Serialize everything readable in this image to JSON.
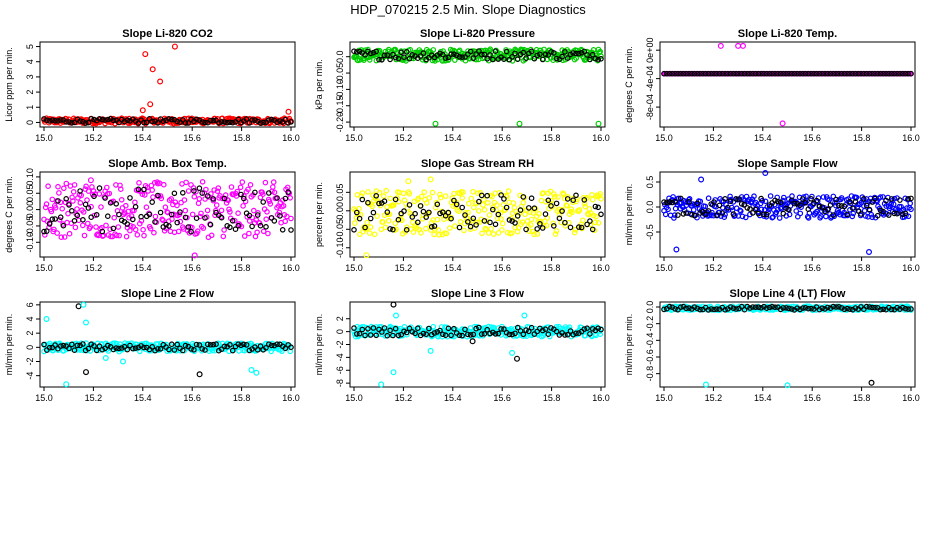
{
  "figure": {
    "title": "HDP_070215  2.5 Min. Slope Diagnostics"
  },
  "chart_data": [
    {
      "type": "scatter",
      "title": "Slope Li-820 CO2",
      "xlabel": "",
      "ylabel": "Licor ppm per min.",
      "color": "#ff0000",
      "xlim": [
        15.0,
        16.0
      ],
      "xticks": [
        "15.0",
        "15.2",
        "15.4",
        "15.6",
        "15.8",
        "16.0"
      ],
      "ylim": [
        -0.3,
        5.3
      ],
      "yticks": [
        {
          "v": 0,
          "l": "0"
        },
        {
          "v": 1,
          "l": "1"
        },
        {
          "v": 2,
          "l": "2"
        },
        {
          "v": 3,
          "l": "3"
        },
        {
          "v": 4,
          "l": "4"
        },
        {
          "v": 5,
          "l": "5"
        }
      ],
      "band": {
        "center": 0.1,
        "half": 0.18
      },
      "outliers": [
        [
          15.41,
          4.5
        ],
        [
          15.44,
          3.5
        ],
        [
          15.47,
          2.7
        ],
        [
          15.53,
          5.0
        ],
        [
          15.43,
          1.2
        ],
        [
          15.4,
          0.8
        ],
        [
          15.99,
          0.7
        ]
      ]
    },
    {
      "type": "scatter",
      "title": "Slope Li-820 Pressure",
      "xlabel": "",
      "ylabel": "kPa per min.",
      "color": "#00cc00",
      "xlim": [
        15.0,
        16.0
      ],
      "xticks": [
        "15.0",
        "15.2",
        "15.4",
        "15.6",
        "15.8",
        "16.0"
      ],
      "ylim": [
        -0.215,
        0.045
      ],
      "yticks": [
        {
          "v": 0,
          "l": "0.0"
        },
        {
          "v": -0.05,
          "l": "-0.05"
        },
        {
          "v": -0.1,
          "l": "-0.10"
        },
        {
          "v": -0.15,
          "l": "-0.15"
        },
        {
          "v": -0.2,
          "l": "-0.20"
        }
      ],
      "band": {
        "center": 0.005,
        "half": 0.018
      },
      "outliers": [
        [
          15.33,
          -0.205
        ],
        [
          15.67,
          -0.205
        ],
        [
          15.99,
          -0.205
        ]
      ]
    },
    {
      "type": "scatter",
      "title": "Slope Li-820 Temp.",
      "xlabel": "",
      "ylabel": "degrees C per min.",
      "color": "#ff00ff",
      "xlim": [
        15.0,
        16.0
      ],
      "xticks": [
        "15.0",
        "15.2",
        "15.4",
        "15.6",
        "15.8",
        "16.0"
      ],
      "ylim": [
        -0.00108,
        0.000115
      ],
      "yticks": [
        {
          "v": 0,
          "l": "0e+00"
        },
        {
          "v": -0.0004,
          "l": "-4e-04"
        },
        {
          "v": -0.0008,
          "l": "-8e-04"
        }
      ],
      "band": {
        "center": -0.00033,
        "half": 0.0
      },
      "outliers": [
        [
          15.23,
          6e-05
        ],
        [
          15.3,
          6e-05
        ],
        [
          15.32,
          6e-05
        ],
        [
          15.48,
          -0.00103
        ]
      ]
    },
    {
      "type": "scatter",
      "title": "Slope Amb. Box Temp.",
      "xlabel": "",
      "ylabel": "degrees C per min.",
      "color": "#ff00ff",
      "xlim": [
        15.0,
        16.0
      ],
      "xticks": [
        "15.0",
        "15.2",
        "15.4",
        "15.6",
        "15.8",
        "16.0"
      ],
      "ylim": [
        -0.145,
        0.115
      ],
      "yticks": [
        {
          "v": 0.1,
          "l": "0.10"
        },
        {
          "v": 0.05,
          "l": "0.05"
        },
        {
          "v": 0,
          "l": "0.00"
        },
        {
          "v": -0.05,
          "l": "-0.05"
        },
        {
          "v": -0.1,
          "l": "-0.10"
        }
      ],
      "band": {
        "center": 0.0,
        "half": 0.085
      },
      "outliers": [
        [
          15.61,
          -0.14
        ],
        [
          15.19,
          0.09
        ]
      ]
    },
    {
      "type": "scatter",
      "title": "Slope Gas Stream RH",
      "xlabel": "",
      "ylabel": "percent per min.",
      "color": "#ffff00",
      "xlim": [
        15.0,
        16.0
      ],
      "xticks": [
        "15.0",
        "15.2",
        "15.4",
        "15.6",
        "15.8",
        "16.0"
      ],
      "ylim": [
        -0.125,
        0.105
      ],
      "yticks": [
        {
          "v": 0.05,
          "l": "0.05"
        },
        {
          "v": 0,
          "l": "0.00"
        },
        {
          "v": -0.05,
          "l": "-0.05"
        },
        {
          "v": -0.1,
          "l": "-0.10"
        }
      ],
      "band": {
        "center": -0.005,
        "half": 0.06
      },
      "outliers": [
        [
          15.05,
          -0.12
        ],
        [
          15.31,
          0.085
        ],
        [
          15.22,
          0.08
        ]
      ]
    },
    {
      "type": "scatter",
      "title": "Slope Sample Flow",
      "xlabel": "",
      "ylabel": "ml/min per min.",
      "color": "#0000ff",
      "xlim": [
        15.0,
        16.0
      ],
      "xticks": [
        "15.0",
        "15.2",
        "15.4",
        "15.6",
        "15.8",
        "16.0"
      ],
      "ylim": [
        -1.0,
        0.7
      ],
      "yticks": [
        {
          "v": 0.5,
          "l": "0.5"
        },
        {
          "v": 0,
          "l": "0.0"
        },
        {
          "v": -0.5,
          "l": "-0.5"
        }
      ],
      "band": {
        "center": 0.0,
        "half": 0.22
      },
      "outliers": [
        [
          15.41,
          0.68
        ],
        [
          15.05,
          -0.85
        ],
        [
          15.83,
          -0.9
        ],
        [
          15.15,
          0.55
        ]
      ]
    },
    {
      "type": "scatter",
      "title": "Slope Line 2 Flow",
      "xlabel": "",
      "ylabel": "ml/min per min.",
      "color": "#00ffff",
      "xlim": [
        15.0,
        16.0
      ],
      "xticks": [
        "15.0",
        "15.2",
        "15.4",
        "15.6",
        "15.8",
        "16.0"
      ],
      "ylim": [
        -5.6,
        6.4
      ],
      "yticks": [
        {
          "v": 6,
          "l": "6"
        },
        {
          "v": 4,
          "l": "4"
        },
        {
          "v": 2,
          "l": "2"
        },
        {
          "v": 0,
          "l": "0"
        },
        {
          "v": -2,
          "l": "-2"
        },
        {
          "v": -4,
          "l": "-4"
        }
      ],
      "band": {
        "center": 0.0,
        "half": 0.6
      },
      "outliers": [
        [
          15.01,
          4.0
        ],
        [
          15.09,
          -5.2
        ],
        [
          15.14,
          5.8
        ],
        [
          15.16,
          6.0
        ],
        [
          15.17,
          3.5
        ],
        [
          15.17,
          -3.5
        ],
        [
          15.25,
          -1.5
        ],
        [
          15.32,
          -2.0
        ],
        [
          15.63,
          -3.8
        ],
        [
          15.84,
          -3.2
        ],
        [
          15.86,
          -3.6
        ]
      ]
    },
    {
      "type": "scatter",
      "title": "Slope Line 3 Flow",
      "xlabel": "",
      "ylabel": "ml/min per min.",
      "color": "#00ffff",
      "xlim": [
        15.0,
        16.0
      ],
      "xticks": [
        "15.0",
        "15.2",
        "15.4",
        "15.6",
        "15.8",
        "16.0"
      ],
      "ylim": [
        -8.6,
        4.6
      ],
      "yticks": [
        {
          "v": 2,
          "l": "2"
        },
        {
          "v": 0,
          "l": "0"
        },
        {
          "v": -2,
          "l": "-2"
        },
        {
          "v": -4,
          "l": "-4"
        },
        {
          "v": -6,
          "l": "-6"
        },
        {
          "v": -8,
          "l": "-8"
        }
      ],
      "band": {
        "center": 0.0,
        "half": 0.8
      },
      "outliers": [
        [
          15.11,
          -8.2
        ],
        [
          15.16,
          -6.3
        ],
        [
          15.16,
          4.2
        ],
        [
          15.17,
          2.5
        ],
        [
          15.69,
          2.5
        ],
        [
          15.66,
          -4.2
        ],
        [
          15.64,
          -3.3
        ],
        [
          15.31,
          -3.0
        ],
        [
          15.48,
          -1.5
        ]
      ]
    },
    {
      "type": "scatter",
      "title": "Slope Line 4 (LT) Flow",
      "xlabel": "",
      "ylabel": "ml/min per min.",
      "color": "#00ffff",
      "xlim": [
        15.0,
        16.0
      ],
      "xticks": [
        "15.0",
        "15.2",
        "15.4",
        "15.6",
        "15.8",
        "16.0"
      ],
      "ylim": [
        -0.96,
        0.06
      ],
      "yticks": [
        {
          "v": 0,
          "l": "0.0"
        },
        {
          "v": -0.2,
          "l": "-0.2"
        },
        {
          "v": -0.4,
          "l": "-0.4"
        },
        {
          "v": -0.6,
          "l": "-0.6"
        },
        {
          "v": -0.8,
          "l": "-0.8"
        }
      ],
      "band": {
        "center": -0.015,
        "half": 0.025
      },
      "outliers": [
        [
          15.17,
          -0.93
        ],
        [
          15.5,
          -0.94
        ],
        [
          15.84,
          -0.91
        ]
      ]
    }
  ]
}
